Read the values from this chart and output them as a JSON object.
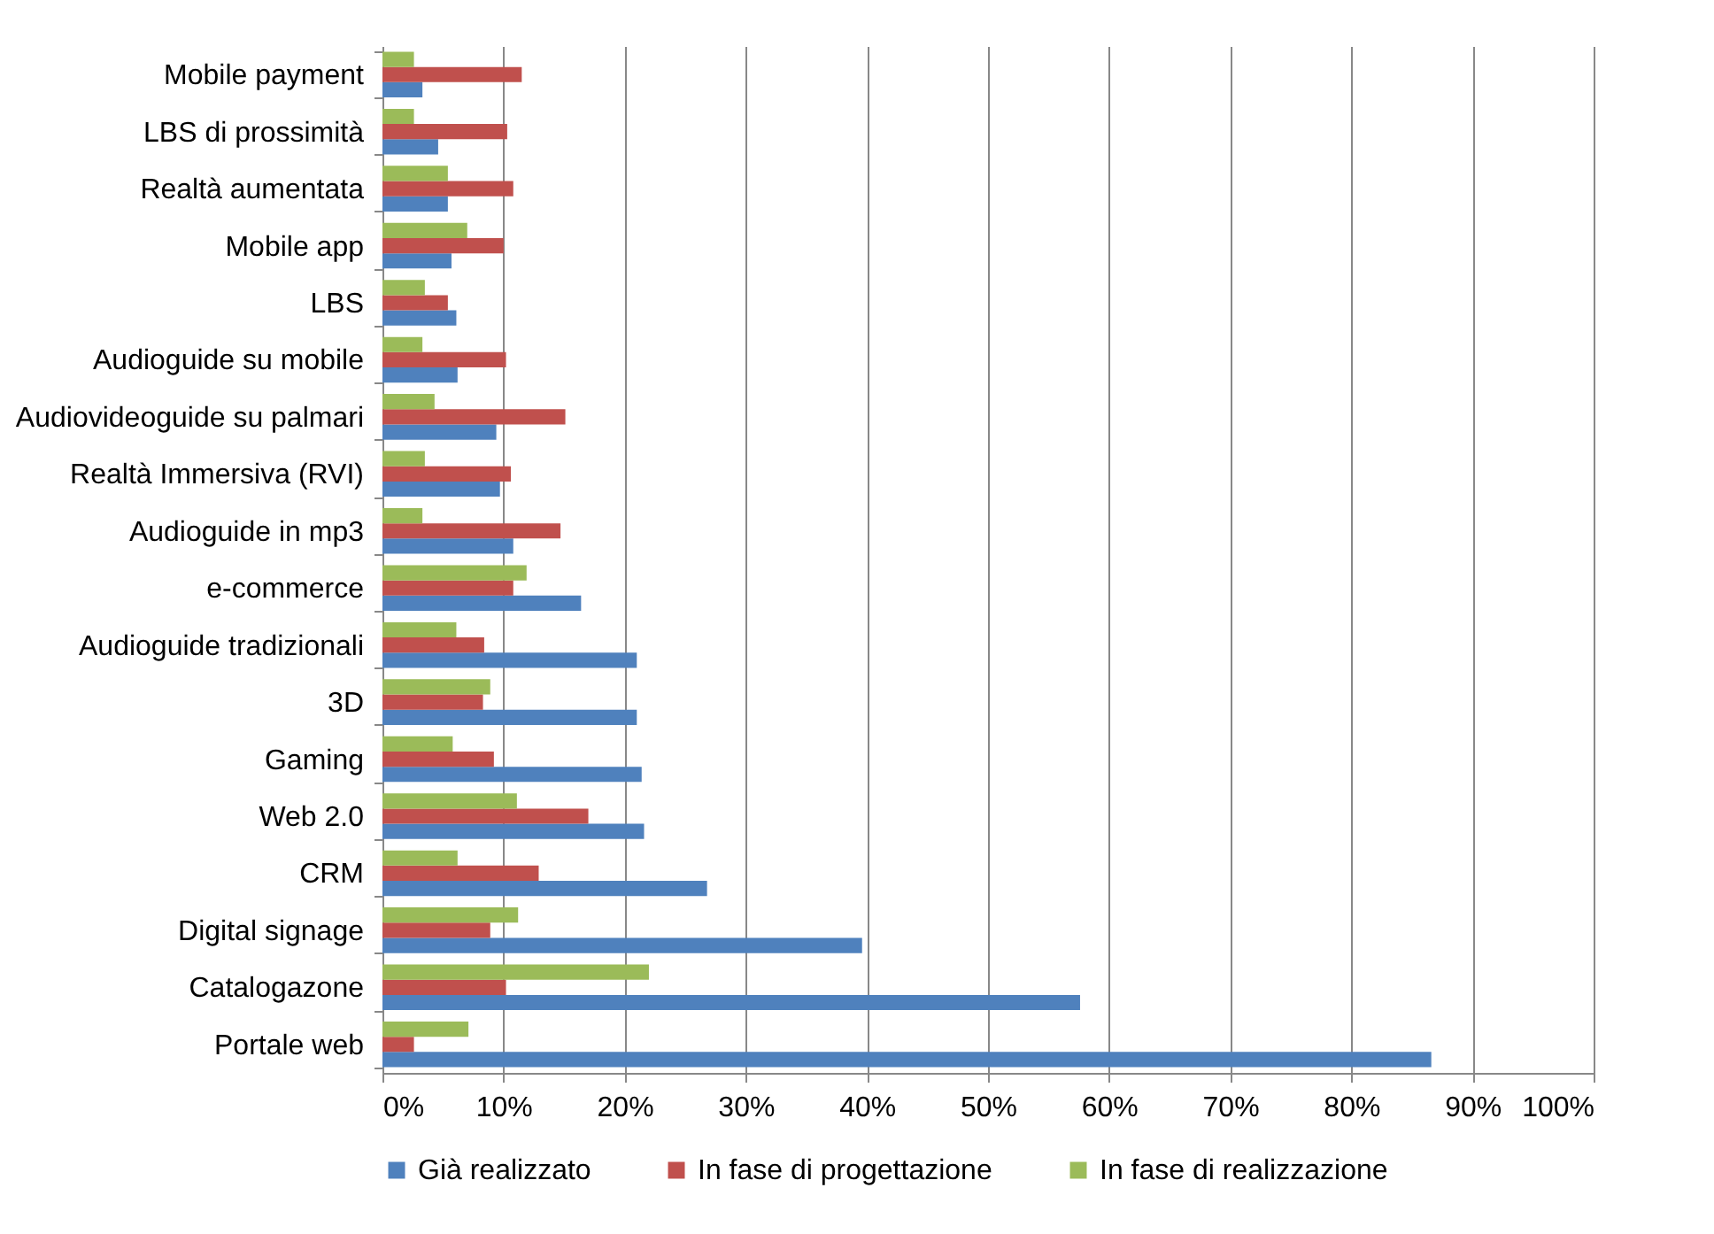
{
  "chart_data": {
    "type": "bar",
    "orientation": "horizontal",
    "categories": [
      "Mobile payment",
      "LBS di prossimità",
      "Realtà aumentata",
      "Mobile app",
      "LBS",
      "Audioguide su mobile",
      "Audiovideoguide su palmari",
      "Realtà Immersiva (RVI)",
      "Audioguide in mp3",
      "e-commerce",
      "Audioguide tradizionali",
      "3D",
      "Gaming",
      "Web 2.0",
      "CRM",
      "Digital signage",
      "Catalogazone",
      "Portale web"
    ],
    "series": [
      {
        "name": "Già realizzato",
        "color": "#4f81bd",
        "values": [
          3.3,
          4.6,
          5.4,
          5.7,
          6.1,
          6.2,
          9.4,
          9.7,
          10.8,
          16.4,
          21.0,
          21.0,
          21.4,
          21.6,
          26.8,
          39.6,
          57.6,
          86.6
        ]
      },
      {
        "name": "In fase di progettazione",
        "color": "#c0504d",
        "values": [
          11.5,
          10.3,
          10.8,
          10.0,
          5.4,
          10.2,
          15.1,
          10.6,
          14.7,
          10.8,
          8.4,
          8.3,
          9.2,
          17.0,
          12.9,
          8.9,
          10.2,
          2.6
        ]
      },
      {
        "name": "In fase di realizzazione",
        "color": "#9bbb59",
        "values": [
          2.6,
          2.6,
          5.4,
          7.0,
          3.5,
          3.3,
          4.3,
          3.5,
          3.3,
          11.9,
          6.1,
          8.9,
          5.8,
          11.1,
          6.2,
          11.2,
          22.0,
          7.1
        ]
      }
    ],
    "xlim": [
      0,
      100
    ],
    "xticks": [
      {
        "value": 0,
        "label": "0%"
      },
      {
        "value": 10,
        "label": "10%"
      },
      {
        "value": 20,
        "label": "20%"
      },
      {
        "value": 30,
        "label": "30%"
      },
      {
        "value": 40,
        "label": "40%"
      },
      {
        "value": 50,
        "label": "50%"
      },
      {
        "value": 60,
        "label": "60%"
      },
      {
        "value": 70,
        "label": "70%"
      },
      {
        "value": 80,
        "label": "80%"
      },
      {
        "value": 90,
        "label": "90%"
      },
      {
        "value": 100,
        "label": "100%"
      }
    ],
    "grid": "x",
    "legend": "bottom"
  }
}
